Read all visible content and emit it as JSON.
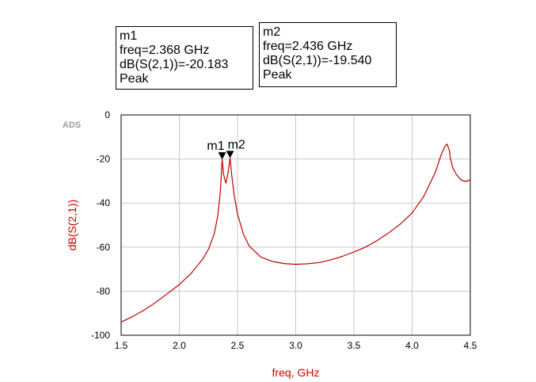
{
  "logo": "ADS",
  "markers": [
    {
      "name": "m1",
      "freq_line": "freq=2.368 GHz",
      "value_line": "dB(S(2,1))=-20.183",
      "type_line": "Peak",
      "freq": 2.368,
      "value": -20.183
    },
    {
      "name": "m2",
      "freq_line": "freq=2.436 GHz",
      "value_line": "dB(S(2,1))=-19.540",
      "type_line": "Peak",
      "freq": 2.436,
      "value": -19.54
    }
  ],
  "chart_data": {
    "type": "line",
    "xlabel": "freq, GHz",
    "ylabel": "dB(S(2,1))",
    "xlim": [
      1.5,
      4.5
    ],
    "ylim": [
      -100,
      0
    ],
    "x_ticks": [
      "1.5",
      "2.0",
      "2.5",
      "3.0",
      "3.5",
      "4.0",
      "4.5"
    ],
    "y_ticks": [
      "0",
      "-20",
      "-40",
      "-60",
      "-80",
      "-100"
    ],
    "grid": true,
    "line_color": "#c00000",
    "series": [
      {
        "x": [
          1.5,
          1.6,
          1.7,
          1.8,
          1.9,
          2.0,
          2.1,
          2.2,
          2.25,
          2.3,
          2.33,
          2.35,
          2.36,
          2.368,
          2.38,
          2.4,
          2.42,
          2.436,
          2.45,
          2.47,
          2.5,
          2.55,
          2.6,
          2.7,
          2.8,
          2.9,
          3.0,
          3.1,
          3.2,
          3.3,
          3.4,
          3.5,
          3.6,
          3.7,
          3.8,
          3.9,
          4.0,
          4.1,
          4.2,
          4.25,
          4.28,
          4.3,
          4.32,
          4.33,
          4.35,
          4.38,
          4.42,
          4.46,
          4.5
        ],
        "y": [
          -94,
          -91.5,
          -88.5,
          -85,
          -81,
          -77,
          -72,
          -65.5,
          -61,
          -54,
          -46,
          -36,
          -28,
          -20.2,
          -27,
          -31,
          -26,
          -19.5,
          -27,
          -36,
          -45,
          -54,
          -59.5,
          -64.5,
          -66.5,
          -67.5,
          -67.8,
          -67.6,
          -67,
          -65.8,
          -64.2,
          -62.2,
          -60,
          -57,
          -53.5,
          -49.5,
          -44.5,
          -37,
          -26,
          -18,
          -14.5,
          -13.2,
          -16,
          -20,
          -24,
          -27,
          -29.5,
          -30.2,
          -29.5
        ]
      }
    ]
  }
}
